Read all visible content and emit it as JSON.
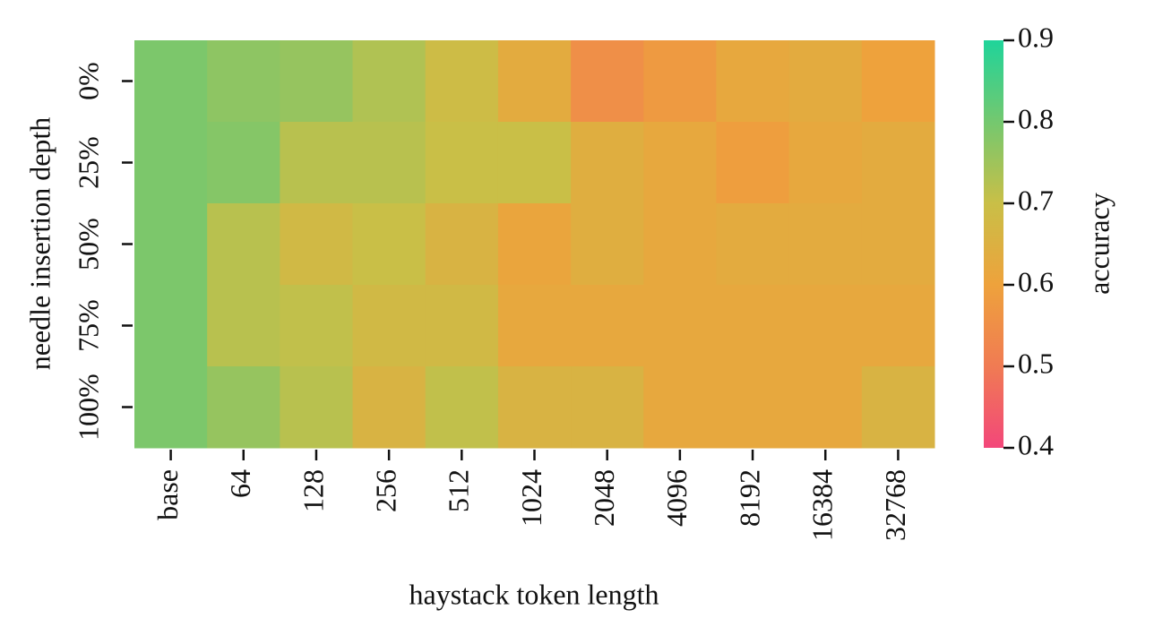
{
  "chart_data": {
    "type": "heatmap",
    "xlabel": "haystack token length",
    "ylabel": "needle insertion depth",
    "colorbar_label": "accuracy",
    "categories": [
      "base",
      "64",
      "128",
      "256",
      "512",
      "1024",
      "2048",
      "4096",
      "8192",
      "16384",
      "32768"
    ],
    "rows": [
      "0%",
      "25%",
      "50%",
      "75%",
      "100%"
    ],
    "values": [
      [
        0.79,
        0.77,
        0.76,
        0.73,
        0.69,
        0.63,
        0.55,
        0.58,
        0.62,
        0.63,
        0.6
      ],
      [
        0.79,
        0.78,
        0.72,
        0.72,
        0.7,
        0.7,
        0.64,
        0.62,
        0.59,
        0.62,
        0.63
      ],
      [
        0.79,
        0.72,
        0.68,
        0.7,
        0.66,
        0.61,
        0.64,
        0.62,
        0.63,
        0.63,
        0.63
      ],
      [
        0.79,
        0.72,
        0.71,
        0.68,
        0.68,
        0.62,
        0.62,
        0.62,
        0.62,
        0.62,
        0.62
      ],
      [
        0.79,
        0.76,
        0.72,
        0.66,
        0.71,
        0.66,
        0.66,
        0.62,
        0.62,
        0.62,
        0.66
      ]
    ],
    "clim": [
      0.4,
      0.9
    ],
    "cticks": [
      0.4,
      0.5,
      0.6,
      0.7,
      0.8,
      0.9
    ],
    "colormap": [
      "#f3477a",
      "#f07b53",
      "#eea23c",
      "#c9bf47",
      "#74c86f",
      "#1fd49a"
    ]
  }
}
